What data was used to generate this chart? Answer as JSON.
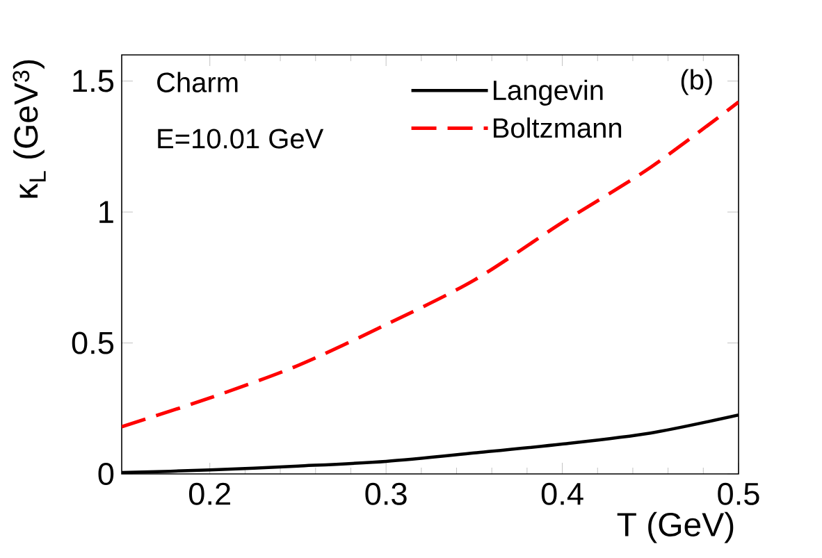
{
  "chart_data": {
    "type": "line",
    "xlabel": "T (GeV)",
    "ylabel": "κ$_{L}$ (GeV$^{3}$)",
    "annotations": [
      "Charm",
      "E=10.01 GeV",
      "(b)"
    ],
    "x": [
      0.15,
      0.2,
      0.25,
      0.3,
      0.35,
      0.4,
      0.45,
      0.5
    ],
    "series": [
      {
        "name": "Langevin",
        "color": "#000000",
        "line_style": "solid",
        "values": [
          0.005,
          0.015,
          0.03,
          0.048,
          0.08,
          0.114,
          0.156,
          0.225
        ]
      },
      {
        "name": "Boltzmann",
        "color": "#ff0000",
        "line_style": "dashed",
        "values": [
          0.18,
          0.29,
          0.414,
          0.57,
          0.74,
          0.96,
          1.17,
          1.42
        ]
      }
    ],
    "xlim": [
      0.15,
      0.5
    ],
    "ylim": [
      0,
      1.6
    ],
    "xticks": [
      0.2,
      0.3,
      0.4,
      0.5
    ],
    "yticks": [
      0,
      0.5,
      1,
      1.5
    ],
    "legend": "top right",
    "grid": false,
    "marker": "none"
  }
}
